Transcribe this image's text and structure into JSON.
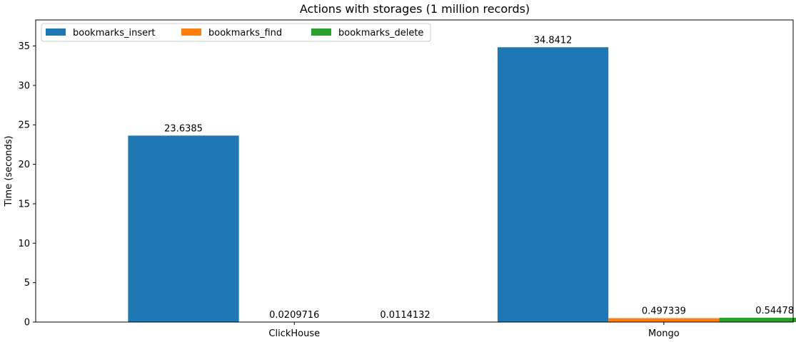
{
  "chart_data": {
    "type": "bar",
    "title": "Actions with storages (1 million records)",
    "xlabel": "",
    "ylabel": "Time (seconds)",
    "categories": [
      "ClickHouse",
      "Mongo"
    ],
    "series": [
      {
        "name": "bookmarks_insert",
        "color": "#1f77b4",
        "values": [
          23.6385,
          34.8412
        ],
        "labels": [
          "23.6385",
          "34.8412"
        ]
      },
      {
        "name": "bookmarks_find",
        "color": "#ff7f0e",
        "values": [
          0.0209716,
          0.497339
        ],
        "labels": [
          "0.0209716",
          "0.497339"
        ]
      },
      {
        "name": "bookmarks_delete",
        "color": "#2ca02c",
        "values": [
          0.0114132,
          0.54478
        ],
        "labels": [
          "0.0114132",
          "0.54478"
        ]
      }
    ],
    "ylim": [
      0,
      38.3
    ],
    "yticks": [
      0,
      5,
      10,
      15,
      20,
      25,
      30,
      35
    ],
    "grid": false,
    "legend": {
      "placement": "top-left",
      "ncol": 3
    }
  }
}
